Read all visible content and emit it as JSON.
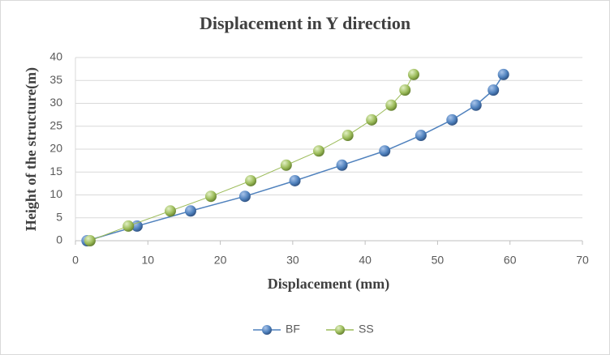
{
  "chart_data": {
    "type": "line",
    "title": "Displacement in Y direction",
    "x_label": "Displacement (mm)",
    "y_label": "Height of the structure(m)",
    "xlim": [
      0,
      70
    ],
    "xticks": [
      0,
      10,
      20,
      30,
      40,
      50,
      60,
      70
    ],
    "ylim": [
      0,
      40
    ],
    "yticks": [
      0,
      5,
      10,
      15,
      20,
      25,
      30,
      35,
      40
    ],
    "grid": true,
    "legend": "bottom",
    "series": [
      {
        "name": "BF",
        "color": "#4f81bd",
        "x": [
          1.6,
          8.5,
          15.9,
          23.4,
          30.3,
          36.8,
          42.7,
          47.7,
          52.0,
          55.3,
          57.7,
          59.1
        ],
        "values": [
          0,
          3.2,
          6.5,
          9.7,
          13.1,
          16.5,
          19.6,
          23.0,
          26.4,
          29.6,
          32.9,
          36.3
        ]
      },
      {
        "name": "SS",
        "color": "#9bbb59",
        "x": [
          2.0,
          7.3,
          13.1,
          18.7,
          24.2,
          29.1,
          33.6,
          37.6,
          40.9,
          43.6,
          45.5,
          46.7
        ],
        "values": [
          0,
          3.2,
          6.5,
          9.7,
          13.1,
          16.5,
          19.6,
          23.0,
          26.4,
          29.6,
          32.9,
          36.3
        ]
      }
    ]
  }
}
